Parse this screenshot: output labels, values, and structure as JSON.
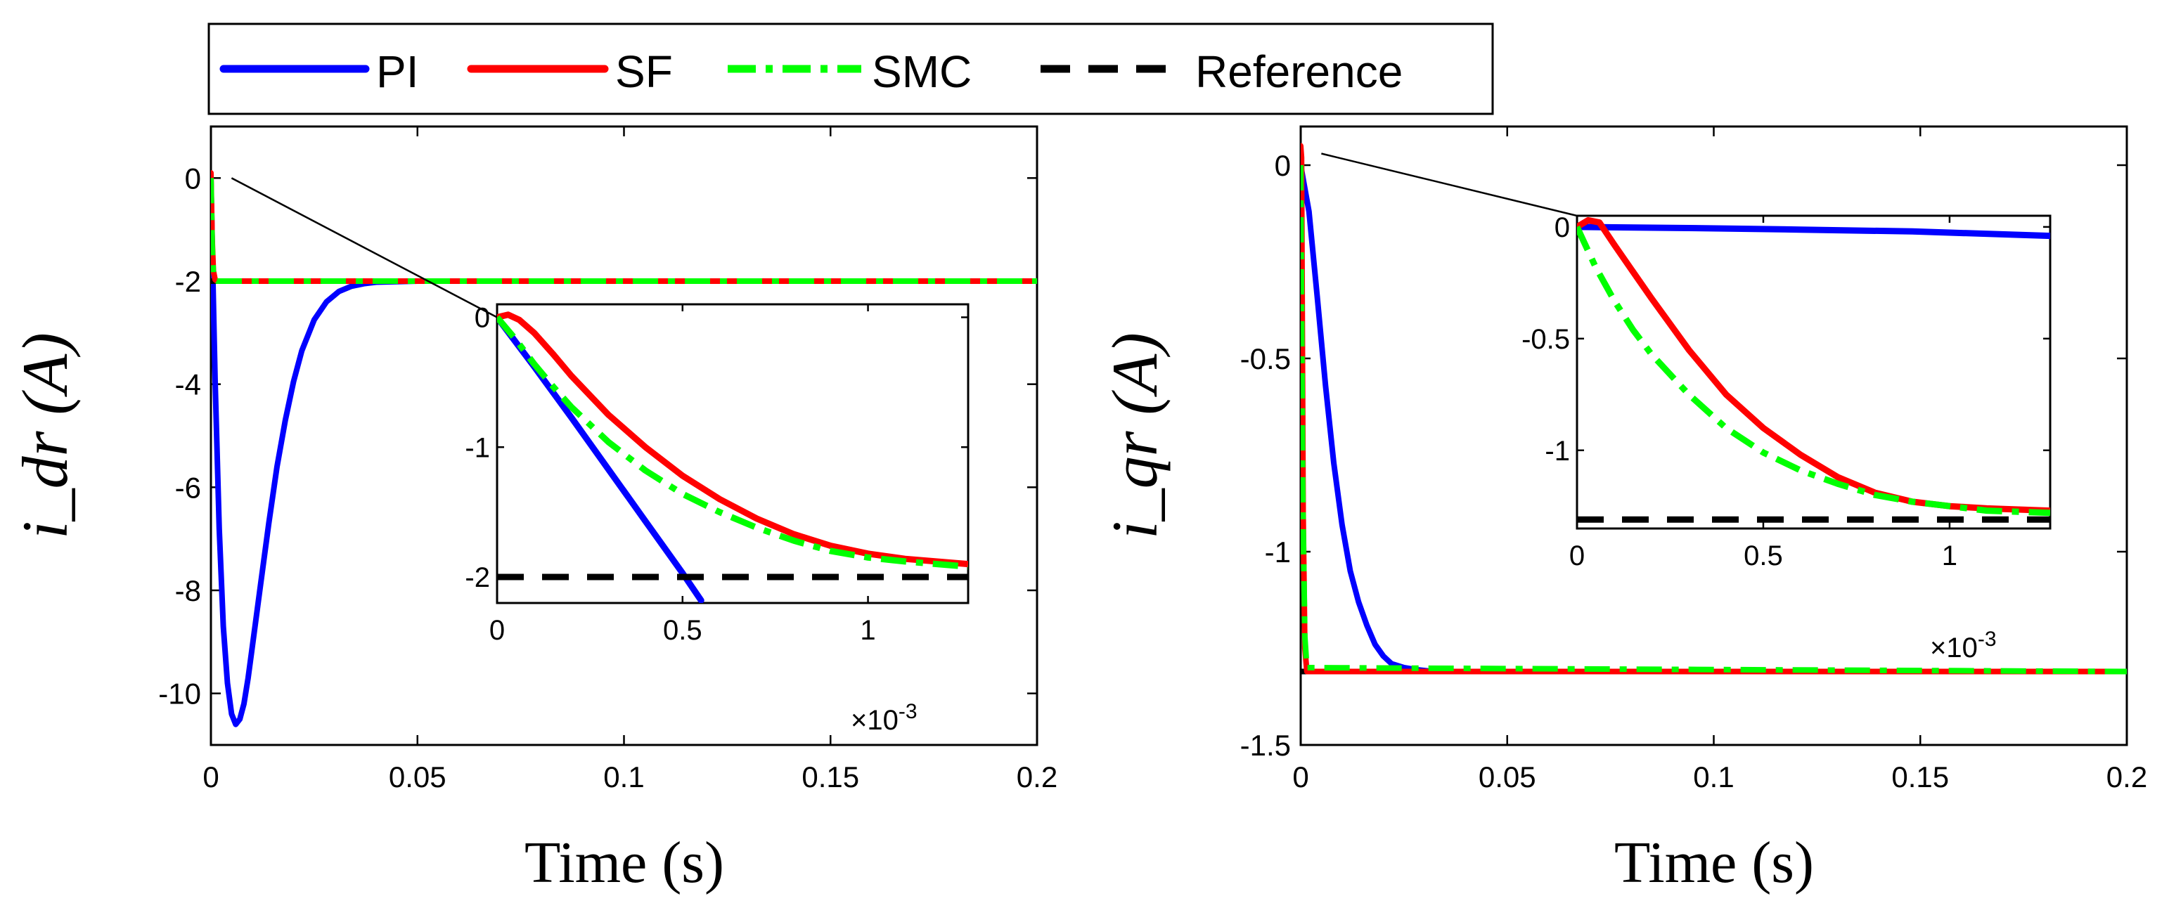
{
  "legend": {
    "items": [
      {
        "label": "PI",
        "color": "#0000ff",
        "style": "solid"
      },
      {
        "label": "SF",
        "color": "#ff0000",
        "style": "solid"
      },
      {
        "label": "SMC",
        "color": "#00ff00",
        "style": "dashdot"
      },
      {
        "label": "Reference",
        "color": "#000000",
        "style": "dashed"
      }
    ]
  },
  "chart_data": [
    {
      "type": "line",
      "title": "",
      "xlabel": "Time (s)",
      "ylabel": "i_dr (A)",
      "xlim": [
        0,
        0.2
      ],
      "ylim": [
        -11,
        1
      ],
      "xticks": [
        0,
        0.05,
        0.1,
        0.15,
        0.2
      ],
      "xtick_labels": [
        "0",
        "0.05",
        "0.1",
        "0.15",
        "0.2"
      ],
      "yticks": [
        0,
        -2,
        -4,
        -6,
        -8,
        -10
      ],
      "ytick_labels": [
        "0",
        "-2",
        "-4",
        "-6",
        "-8",
        "-10"
      ],
      "series": [
        {
          "name": "PI",
          "x": [
            0,
            0.0005,
            0.001,
            0.002,
            0.003,
            0.004,
            0.005,
            0.006,
            0.007,
            0.008,
            0.009,
            0.01,
            0.012,
            0.014,
            0.016,
            0.018,
            0.02,
            0.022,
            0.025,
            0.028,
            0.031,
            0.034,
            0.037,
            0.04,
            0.045,
            0.05,
            0.06,
            0.08,
            0.2
          ],
          "y": [
            0,
            -2,
            -3.9,
            -6.8,
            -8.7,
            -9.8,
            -10.4,
            -10.6,
            -10.5,
            -10.2,
            -9.7,
            -9.1,
            -7.9,
            -6.7,
            -5.6,
            -4.7,
            -3.95,
            -3.35,
            -2.75,
            -2.4,
            -2.2,
            -2.1,
            -2.05,
            -2.02,
            -2.01,
            -2.0,
            -2.0,
            -2.0,
            -2.0
          ]
        },
        {
          "name": "SF",
          "x": [
            0,
            0.0003,
            0.0006,
            0.001,
            0.0015,
            0.002,
            0.2
          ],
          "y": [
            0.1,
            -1.2,
            -1.8,
            -1.97,
            -2.0,
            -2.0,
            -2.0
          ]
        },
        {
          "name": "SMC",
          "x": [
            0,
            0.0003,
            0.0006,
            0.001,
            0.0015,
            0.002,
            0.2
          ],
          "y": [
            0,
            -1.3,
            -1.85,
            -1.98,
            -2.0,
            -2.0,
            -2.0
          ]
        },
        {
          "name": "Reference",
          "x": [
            0,
            0.2
          ],
          "y": [
            -2,
            -2
          ]
        }
      ],
      "inset": {
        "xlim": [
          0,
          1.27
        ],
        "ylim": [
          -2.2,
          0.1
        ],
        "x_multiplier": "×10",
        "x_multiplier_exp": "-3",
        "xticks": [
          0,
          0.5,
          1
        ],
        "xtick_labels": [
          "0",
          "0.5",
          "1"
        ],
        "yticks": [
          0,
          -1,
          -2
        ],
        "ytick_labels": [
          "0",
          "-1",
          "-2"
        ],
        "series": [
          {
            "name": "PI",
            "x": [
              0,
              0.1,
              0.2,
              0.3,
              0.4,
              0.5,
              0.55
            ],
            "y": [
              0,
              -0.38,
              -0.77,
              -1.17,
              -1.57,
              -1.97,
              -2.18
            ]
          },
          {
            "name": "SF",
            "x": [
              0,
              0.03,
              0.06,
              0.1,
              0.15,
              0.2,
              0.3,
              0.4,
              0.5,
              0.6,
              0.7,
              0.8,
              0.9,
              1.0,
              1.1,
              1.27
            ],
            "y": [
              0,
              0.02,
              -0.02,
              -0.12,
              -0.28,
              -0.45,
              -0.75,
              -1.0,
              -1.22,
              -1.4,
              -1.55,
              -1.67,
              -1.76,
              -1.82,
              -1.86,
              -1.9
            ]
          },
          {
            "name": "SMC",
            "x": [
              0,
              0.05,
              0.1,
              0.15,
              0.2,
              0.3,
              0.4,
              0.5,
              0.6,
              0.7,
              0.8,
              0.9,
              1.0,
              1.1,
              1.27
            ],
            "y": [
              0,
              -0.17,
              -0.36,
              -0.53,
              -0.69,
              -0.96,
              -1.18,
              -1.36,
              -1.5,
              -1.62,
              -1.72,
              -1.8,
              -1.85,
              -1.88,
              -1.92
            ]
          },
          {
            "name": "Reference",
            "x": [
              0,
              1.27
            ],
            "y": [
              -2,
              -2
            ]
          }
        ]
      },
      "zoom_connector": {
        "from_data": [
          0.005,
          0
        ],
        "to_inset_data": [
          0,
          0
        ]
      }
    },
    {
      "type": "line",
      "title": "",
      "xlabel": "Time (s)",
      "ylabel": "i_qr (A)",
      "xlim": [
        0,
        0.2
      ],
      "ylim": [
        -1.5,
        0.1
      ],
      "xticks": [
        0,
        0.05,
        0.1,
        0.15,
        0.2
      ],
      "xtick_labels": [
        "0",
        "0.05",
        "0.1",
        "0.15",
        "0.2"
      ],
      "yticks": [
        0,
        -0.5,
        -1,
        -1.5
      ],
      "ytick_labels": [
        "0",
        "-0.5",
        "-1",
        "-1.5"
      ],
      "series": [
        {
          "name": "PI",
          "x": [
            0,
            0.002,
            0.004,
            0.006,
            0.008,
            0.01,
            0.012,
            0.014,
            0.016,
            0.018,
            0.02,
            0.022,
            0.025,
            0.028,
            0.032,
            0.036,
            0.04,
            0.2
          ],
          "y": [
            0,
            -0.12,
            -0.34,
            -0.57,
            -0.77,
            -0.93,
            -1.05,
            -1.13,
            -1.19,
            -1.24,
            -1.27,
            -1.29,
            -1.3,
            -1.305,
            -1.31,
            -1.31,
            -1.31,
            -1.31
          ]
        },
        {
          "name": "SF",
          "x": [
            0,
            0.0002,
            0.0006,
            0.001,
            0.0015,
            0.2
          ],
          "y": [
            0.05,
            0.02,
            -0.9,
            -1.25,
            -1.31,
            -1.31
          ]
        },
        {
          "name": "SMC",
          "x": [
            0,
            0.0005,
            0.001,
            0.0015,
            0.2
          ],
          "y": [
            0,
            -0.85,
            -1.22,
            -1.3,
            -1.31
          ]
        },
        {
          "name": "Reference",
          "x": [
            0,
            0.2
          ],
          "y": [
            -1.31,
            -1.31
          ]
        }
      ],
      "inset": {
        "xlim": [
          0,
          1.27
        ],
        "ylim": [
          -1.35,
          0.05
        ],
        "x_multiplier": "×10",
        "x_multiplier_exp": "-3",
        "xticks": [
          0,
          0.5,
          1
        ],
        "xtick_labels": [
          "0",
          "0.5",
          "1"
        ],
        "yticks": [
          0,
          -0.5,
          -1
        ],
        "ytick_labels": [
          "0",
          "-0.5",
          "-1"
        ],
        "series": [
          {
            "name": "PI",
            "x": [
              0,
              0.3,
              0.6,
              0.9,
              1.27
            ],
            "y": [
              0,
              -0.005,
              -0.012,
              -0.02,
              -0.04
            ]
          },
          {
            "name": "SF",
            "x": [
              0,
              0.03,
              0.06,
              0.1,
              0.15,
              0.2,
              0.3,
              0.4,
              0.5,
              0.6,
              0.7,
              0.8,
              0.9,
              1.0,
              1.1,
              1.27
            ],
            "y": [
              0,
              0.03,
              0.02,
              -0.08,
              -0.2,
              -0.32,
              -0.55,
              -0.75,
              -0.9,
              -1.02,
              -1.12,
              -1.19,
              -1.23,
              -1.25,
              -1.26,
              -1.27
            ]
          },
          {
            "name": "SMC",
            "x": [
              0,
              0.05,
              0.1,
              0.15,
              0.2,
              0.3,
              0.4,
              0.5,
              0.6,
              0.7,
              0.8,
              0.9,
              1.0,
              1.1,
              1.27
            ],
            "y": [
              0,
              -0.18,
              -0.33,
              -0.46,
              -0.57,
              -0.75,
              -0.9,
              -1.01,
              -1.09,
              -1.15,
              -1.2,
              -1.23,
              -1.25,
              -1.27,
              -1.28
            ]
          },
          {
            "name": "Reference",
            "x": [
              0,
              1.27
            ],
            "y": [
              -1.31,
              -1.31
            ]
          }
        ]
      },
      "zoom_connector": {
        "from_data": [
          0.005,
          0.03
        ],
        "to_inset_data": [
          0,
          0.05
        ]
      }
    }
  ]
}
